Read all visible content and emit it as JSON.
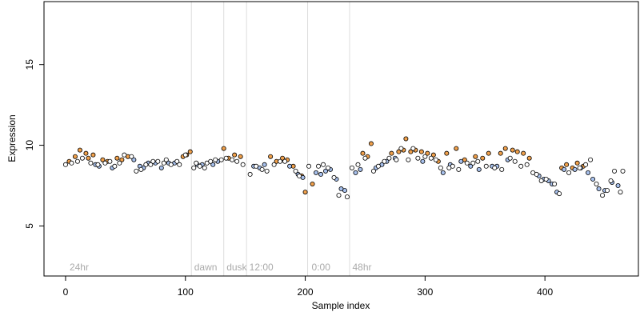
{
  "chart_data": {
    "type": "scatter",
    "xlabel": "Sample index",
    "ylabel": "Expression",
    "xlim": [
      -18,
      478
    ],
    "ylim": [
      1.9,
      18.9
    ],
    "xticks": [
      0,
      100,
      200,
      300,
      400
    ],
    "yticks": [
      5,
      10,
      15
    ],
    "grid": false,
    "legend": "none",
    "annotations": [
      {
        "label": "24hr",
        "x": 2
      },
      {
        "label": "dawn",
        "x": 106
      },
      {
        "label": "dusk",
        "x": 133
      },
      {
        "label": "12:00",
        "x": 152
      },
      {
        "label": "0:00",
        "x": 204
      },
      {
        "label": "48hr",
        "x": 238
      }
    ],
    "vlines": [
      105,
      132,
      151,
      202,
      237
    ],
    "colors": {
      "orange": "#f0a04b",
      "blue": "#a7c0ec",
      "vline": "#dddddd",
      "annotation": "#aaaaaa",
      "point_stroke": "#000000"
    },
    "series": [
      {
        "color_key": "orange",
        "x": [
          3,
          8,
          12,
          17,
          19,
          23,
          31,
          35,
          43,
          47,
          52,
          98,
          101,
          104,
          132,
          136,
          141,
          146,
          171,
          176,
          181,
          185,
          190,
          197,
          200,
          206,
          248,
          252,
          255,
          272,
          278,
          282,
          284,
          288,
          292,
          297,
          302,
          307,
          311,
          318,
          326,
          333,
          342,
          348,
          353,
          363,
          367,
          373,
          377,
          382,
          387,
          414,
          418,
          423,
          427,
          432
        ],
        "y": [
          9.0,
          9.3,
          9.7,
          9.5,
          9.2,
          9.4,
          9.1,
          9.0,
          9.2,
          9.1,
          9.3,
          9.3,
          9.4,
          9.6,
          9.8,
          9.2,
          9.4,
          9.3,
          9.3,
          9.0,
          9.2,
          9.1,
          8.7,
          8.1,
          7.1,
          7.6,
          9.5,
          9.3,
          10.1,
          9.5,
          9.6,
          9.7,
          10.4,
          9.6,
          9.7,
          9.6,
          9.5,
          9.4,
          9.0,
          9.5,
          9.8,
          9.1,
          9.3,
          9.2,
          9.5,
          9.5,
          9.8,
          9.7,
          9.6,
          9.5,
          9.2,
          8.6,
          8.8,
          8.6,
          8.9,
          8.7
        ]
      },
      {
        "color_key": "blue",
        "x": [
          25,
          28,
          39,
          57,
          62,
          65,
          69,
          75,
          80,
          86,
          91,
          110,
          114,
          123,
          127,
          157,
          162,
          166,
          187,
          194,
          198,
          209,
          213,
          217,
          221,
          226,
          230,
          233,
          242,
          246,
          259,
          264,
          268,
          275,
          298,
          315,
          321,
          330,
          338,
          345,
          356,
          360,
          369,
          395,
          399,
          403,
          406,
          410,
          416,
          425,
          430,
          436,
          440,
          445,
          450,
          456,
          461
        ],
        "y": [
          8.8,
          8.7,
          8.6,
          9.1,
          8.7,
          8.6,
          8.9,
          8.9,
          8.6,
          8.9,
          8.9,
          8.8,
          8.8,
          8.8,
          9.0,
          8.7,
          8.6,
          8.8,
          8.7,
          8.2,
          8.0,
          8.3,
          8.2,
          8.4,
          8.5,
          7.9,
          7.3,
          7.2,
          8.3,
          8.5,
          8.6,
          8.8,
          9.0,
          9.2,
          9.0,
          8.3,
          8.8,
          9.0,
          8.7,
          8.5,
          8.7,
          8.7,
          9.1,
          8.1,
          7.9,
          7.8,
          7.6,
          7.1,
          8.5,
          8.5,
          8.6,
          8.3,
          7.9,
          7.3,
          7.2,
          7.7,
          7.5
        ]
      },
      {
        "color_key": "open",
        "x": [
          0,
          5,
          10,
          14,
          21,
          27,
          33,
          37,
          41,
          45,
          49,
          55,
          59,
          63,
          67,
          71,
          73,
          77,
          82,
          84,
          88,
          93,
          95,
          100,
          107,
          109,
          112,
          116,
          118,
          121,
          125,
          130,
          134,
          139,
          143,
          148,
          154,
          159,
          164,
          168,
          174,
          179,
          183,
          192,
          195,
          203,
          211,
          215,
          219,
          224,
          228,
          235,
          239,
          244,
          250,
          257,
          261,
          266,
          270,
          276,
          280,
          286,
          290,
          294,
          300,
          305,
          309,
          313,
          320,
          323,
          328,
          335,
          340,
          344,
          351,
          358,
          364,
          371,
          375,
          380,
          385,
          390,
          393,
          397,
          401,
          408,
          412,
          420,
          429,
          434,
          438,
          443,
          448,
          452,
          455,
          458,
          463,
          465
        ],
        "y": [
          8.8,
          8.9,
          9.0,
          9.2,
          8.9,
          8.8,
          8.9,
          9.0,
          8.7,
          8.9,
          9.4,
          9.3,
          8.4,
          8.5,
          8.8,
          8.8,
          9.0,
          9.0,
          8.9,
          9.1,
          8.8,
          9.0,
          8.8,
          9.4,
          8.6,
          8.9,
          8.7,
          8.6,
          8.9,
          9.0,
          9.1,
          9.1,
          9.2,
          9.1,
          9.0,
          8.8,
          8.2,
          8.7,
          8.5,
          8.4,
          8.8,
          9.0,
          9.0,
          8.4,
          8.1,
          8.7,
          8.7,
          8.8,
          8.6,
          8.0,
          6.9,
          6.8,
          8.6,
          8.8,
          9.2,
          8.4,
          8.7,
          9.0,
          9.2,
          9.1,
          9.8,
          9.1,
          9.8,
          9.2,
          9.3,
          9.2,
          9.1,
          8.6,
          8.6,
          8.7,
          8.5,
          8.9,
          8.9,
          9.0,
          8.7,
          8.6,
          8.5,
          9.2,
          9.0,
          8.7,
          8.8,
          8.3,
          8.2,
          7.8,
          7.9,
          7.6,
          7.0,
          8.3,
          8.6,
          8.8,
          9.1,
          7.6,
          6.9,
          7.2,
          7.8,
          8.4,
          7.1,
          8.4
        ]
      }
    ]
  }
}
